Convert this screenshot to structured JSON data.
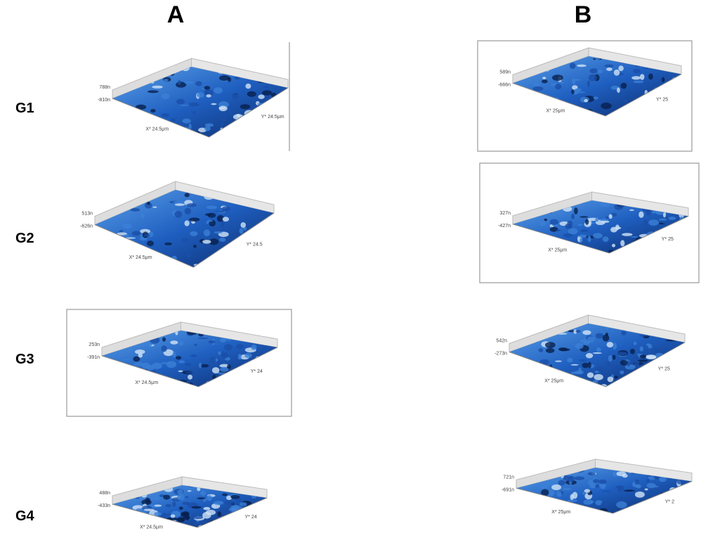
{
  "columns": [
    "A",
    "B"
  ],
  "rows": [
    "G1",
    "G2",
    "G3",
    "G4"
  ],
  "panels": [
    [
      {
        "z_max": "788n",
        "z_min": "-810n",
        "x_label": "X* 24.5μm",
        "y_label": "Y* 24.5μm"
      },
      {
        "z_max": "589n",
        "z_min": "-666n",
        "x_label": "X* 25μm",
        "y_label": "Y* 25"
      }
    ],
    [
      {
        "z_max": "513n",
        "z_min": "-626n",
        "x_label": "X* 24.5μm",
        "y_label": "Y* 24.5"
      },
      {
        "z_max": "327n",
        "z_min": "-427n",
        "x_label": "X* 25μm",
        "y_label": "Y* 25"
      }
    ],
    [
      {
        "z_max": "253n",
        "z_min": "-391n",
        "x_label": "X* 24.5μm",
        "y_label": "Y* 24"
      },
      {
        "z_max": "542n",
        "z_min": "-273n",
        "x_label": "X* 25μm",
        "y_label": "Y* 25"
      }
    ],
    [
      {
        "z_max": "488n",
        "z_min": "-433n",
        "x_label": "X* 24.5μm",
        "y_label": "Y* 24"
      },
      {
        "z_max": "721n",
        "z_min": "-691n",
        "x_label": "X* 25μm",
        "y_label": "Y* 2"
      }
    ]
  ]
}
